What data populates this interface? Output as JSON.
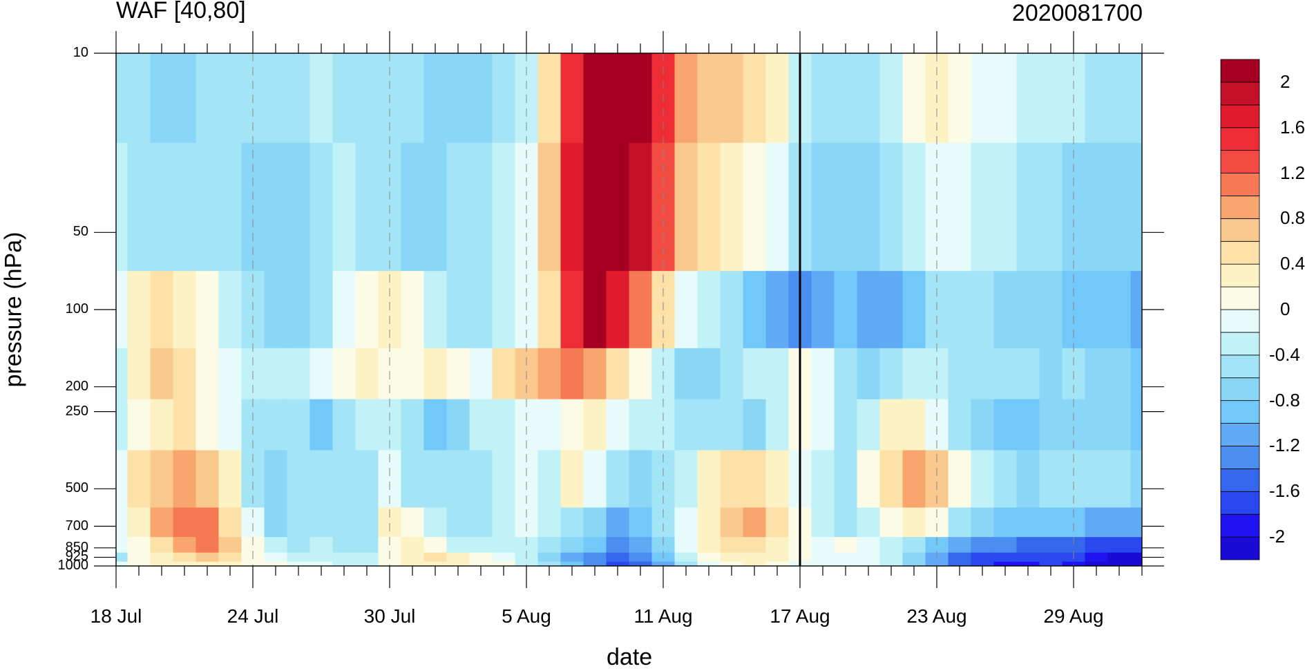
{
  "chart_data": {
    "type": "heatmap",
    "title_left": "WAF [40,80]",
    "title_right": "2020081700",
    "xlabel": "date",
    "ylabel": "pressure (hPa)",
    "x_tick_labels": [
      "18 Jul",
      "24 Jul",
      "30 Jul",
      "5 Aug",
      "11 Aug",
      "17 Aug",
      "23 Aug",
      "29 Aug"
    ],
    "x_tick_days": [
      0,
      6,
      12,
      18,
      24,
      30,
      36,
      42
    ],
    "x_range_days": [
      0,
      45
    ],
    "y_levels": [
      10,
      50,
      100,
      200,
      250,
      500,
      700,
      850,
      925,
      1000
    ],
    "y_tick_labels": [
      "10",
      "50",
      "100",
      "200",
      "250",
      "500",
      "700",
      "850",
      "925",
      "1000"
    ],
    "y_scale": "log",
    "y_range": [
      1000,
      10
    ],
    "vertical_marker_label": "17 Aug",
    "colorbar": {
      "levels": [
        -2.2,
        -2,
        -1.8,
        -1.6,
        -1.4,
        -1.2,
        -1,
        -0.8,
        -0.6,
        -0.4,
        -0.2,
        0,
        0.2,
        0.4,
        0.6,
        0.8,
        1,
        1.2,
        1.4,
        1.6,
        1.8,
        2,
        2.2
      ],
      "tick_labels": [
        "2",
        "1.6",
        "1.2",
        "0.8",
        "0.4",
        "0",
        "-0.4",
        "-0.8",
        "-1.2",
        "-1.6",
        "-2"
      ],
      "colors": [
        "#1a0ad6",
        "#1f14f0",
        "#2a48f0",
        "#3567ec",
        "#4a8ff0",
        "#5fa9f5",
        "#73c8fa",
        "#8ad6f7",
        "#a3e4f7",
        "#c0f2f7",
        "#e6fbfa",
        "#fcfbe6",
        "#fdf2c3",
        "#fce1a8",
        "#fac98e",
        "#f8a56e",
        "#f57a53",
        "#f24b42",
        "#ee2c35",
        "#df1b2d",
        "#c5102a",
        "#a50021"
      ]
    },
    "grid": "dashed vertical at x ticks",
    "values": [
      [
        -0.5,
        -0.6,
        -0.7,
        -0.7,
        -0.6,
        -0.6,
        -0.6,
        -0.6,
        -0.5,
        -0.4,
        -0.5,
        -0.5,
        -0.5,
        -0.6,
        -0.7,
        -0.8,
        -0.7,
        -0.6,
        -0.4,
        0.5,
        1.5,
        2.3,
        2.5,
        2.1,
        1.5,
        0.8,
        0.6,
        0.6,
        0.5,
        0.3,
        -0.3,
        -0.5,
        -0.6,
        -0.5,
        -0.3,
        0.0,
        0.3,
        0.1,
        -0.1,
        -0.2,
        -0.3,
        -0.3,
        -0.4,
        -0.5,
        -0.6,
        -0.6
      ],
      [
        -0.4,
        -0.5,
        -0.6,
        -0.6,
        -0.6,
        -0.6,
        -0.7,
        -0.8,
        -0.7,
        -0.6,
        -0.4,
        -0.5,
        -0.6,
        -0.7,
        -0.7,
        -0.6,
        -0.5,
        -0.4,
        -0.1,
        0.6,
        1.6,
        2.3,
        2.3,
        1.8,
        1.2,
        0.7,
        0.4,
        0.2,
        0.0,
        -0.2,
        -0.5,
        -0.7,
        -0.8,
        -0.7,
        -0.5,
        -0.3,
        -0.1,
        -0.1,
        -0.3,
        -0.4,
        -0.5,
        -0.6,
        -0.7,
        -0.7,
        -0.8,
        -0.8
      ],
      [
        -0.2,
        0.2,
        0.4,
        0.3,
        0.0,
        -0.3,
        -0.6,
        -0.8,
        -0.7,
        -0.6,
        -0.2,
        0.1,
        0.2,
        0.0,
        -0.3,
        -0.6,
        -0.5,
        -0.3,
        -0.1,
        0.5,
        1.4,
        2.0,
        1.7,
        1.0,
        0.4,
        -0.1,
        -0.4,
        -0.6,
        -0.9,
        -1.1,
        -1.3,
        -1.1,
        -1.0,
        -1.1,
        -1.2,
        -0.9,
        -0.6,
        -0.5,
        -0.6,
        -0.7,
        -0.8,
        -0.8,
        -0.9,
        -1.0,
        -1.0,
        -1.1
      ],
      [
        -0.3,
        0.3,
        0.6,
        0.4,
        0.1,
        -0.2,
        -0.4,
        -0.4,
        -0.3,
        -0.2,
        0.1,
        0.2,
        0.1,
        0.0,
        0.3,
        0.1,
        -0.1,
        0.4,
        0.7,
        0.9,
        1.0,
        0.9,
        0.5,
        0.1,
        -0.4,
        -0.7,
        -0.8,
        -0.6,
        -0.4,
        -0.3,
        0.0,
        -0.1,
        -0.6,
        -0.8,
        -0.6,
        -0.3,
        -0.3,
        -0.5,
        -0.5,
        -0.5,
        -0.6,
        -0.7,
        -0.6,
        -0.7,
        -0.8,
        -0.9
      ],
      [
        -0.4,
        0.0,
        0.3,
        0.4,
        0.1,
        -0.2,
        -0.5,
        -0.5,
        -0.6,
        -0.9,
        -0.6,
        -0.4,
        -0.3,
        -0.6,
        -0.9,
        -0.7,
        -0.4,
        -0.3,
        -0.2,
        -0.1,
        0.1,
        0.2,
        -0.2,
        -0.4,
        -0.4,
        -0.5,
        -0.6,
        -0.5,
        -0.7,
        -0.3,
        0.0,
        -0.2,
        -0.6,
        -0.4,
        0.2,
        0.3,
        -0.2,
        -0.5,
        -0.8,
        -0.9,
        -1.0,
        -0.8,
        -0.7,
        -0.7,
        -0.8,
        -0.9
      ],
      [
        -0.2,
        0.4,
        0.7,
        0.9,
        0.6,
        0.2,
        -0.5,
        -0.7,
        -0.6,
        -0.6,
        -0.6,
        -0.5,
        -0.2,
        -0.5,
        -0.6,
        -0.6,
        -0.5,
        -0.4,
        -0.2,
        -0.4,
        0.3,
        -0.2,
        -0.5,
        -0.7,
        -0.6,
        -0.3,
        0.2,
        0.4,
        0.4,
        0.2,
        -0.1,
        -0.3,
        -0.5,
        0.1,
        0.5,
        0.8,
        0.6,
        0.1,
        -0.4,
        -0.6,
        -0.7,
        -0.6,
        -0.5,
        -0.5,
        -0.6,
        -0.7
      ],
      [
        -0.1,
        0.3,
        0.8,
        1.0,
        1.1,
        0.5,
        -0.2,
        -0.8,
        -0.6,
        -0.5,
        -0.6,
        -0.5,
        0.2,
        0.1,
        -0.4,
        -0.6,
        -0.5,
        -0.4,
        -0.2,
        -0.4,
        -0.6,
        -0.8,
        -1.1,
        -0.9,
        -0.6,
        -0.2,
        0.3,
        0.7,
        0.8,
        0.5,
        0.1,
        -0.4,
        -0.6,
        -0.3,
        0.1,
        0.3,
        0.0,
        -0.6,
        -0.8,
        -0.9,
        -1.0,
        -1.0,
        -1.0,
        -1.1,
        -1.1,
        -1.2
      ],
      [
        -0.1,
        0.1,
        0.5,
        0.8,
        1.0,
        0.7,
        0.1,
        -0.3,
        -0.5,
        -0.4,
        -0.6,
        -0.5,
        0.0,
        0.3,
        0.1,
        -0.3,
        -0.3,
        -0.3,
        -0.3,
        -0.5,
        -0.8,
        -1.0,
        -1.3,
        -1.1,
        -0.8,
        -0.2,
        0.2,
        0.4,
        0.5,
        0.3,
        0.1,
        -0.1,
        0.0,
        -0.1,
        -0.3,
        -0.6,
        -1.0,
        -1.2,
        -1.3,
        -1.4,
        -1.5,
        -1.5,
        -1.6,
        -1.7,
        -1.7,
        -1.8
      ],
      [
        -0.6,
        0.0,
        0.3,
        0.5,
        0.6,
        0.4,
        0.1,
        -0.1,
        -0.3,
        -0.3,
        -0.4,
        -0.4,
        0.0,
        0.3,
        0.4,
        0.2,
        0.0,
        -0.1,
        -0.4,
        -0.7,
        -1.1,
        -1.3,
        -1.6,
        -1.4,
        -1.0,
        -0.4,
        0.0,
        0.2,
        0.3,
        0.2,
        0.0,
        -0.1,
        -0.1,
        -0.2,
        -0.4,
        -0.8,
        -1.2,
        -1.5,
        -1.7,
        -1.8,
        -1.8,
        -1.7,
        -1.8,
        -2.0,
        -2.1,
        -2.1
      ],
      [
        -0.2,
        0.0,
        0.2,
        0.3,
        0.3,
        0.2,
        0.1,
        0.0,
        -0.1,
        -0.2,
        -0.3,
        -0.3,
        0.0,
        0.2,
        0.3,
        0.2,
        0.1,
        0.0,
        -0.3,
        -0.6,
        -1.0,
        -1.3,
        -1.8,
        -1.5,
        -1.1,
        -0.5,
        -0.1,
        0.1,
        0.2,
        0.1,
        -0.1,
        -0.1,
        -0.1,
        -0.2,
        -0.4,
        -0.8,
        -1.2,
        -1.6,
        -1.8,
        -1.9,
        -1.9,
        -1.8,
        -1.9,
        -2.1,
        -2.2,
        -2.2
      ]
    ]
  }
}
